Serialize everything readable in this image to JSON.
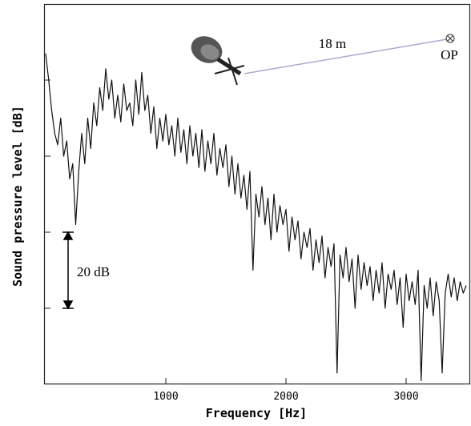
{
  "chart_data": {
    "type": "line",
    "xlabel": "Frequency [Hz]",
    "ylabel": "Sound pressure level [dB]",
    "annotations": [
      "18 m",
      "OP",
      "20 dB"
    ],
    "x": [
      0,
      25,
      50,
      75,
      100,
      125,
      150,
      175,
      200,
      225,
      250,
      275,
      300,
      325,
      350,
      375,
      400,
      425,
      450,
      475,
      500,
      525,
      550,
      575,
      600,
      625,
      650,
      675,
      700,
      725,
      750,
      775,
      800,
      825,
      850,
      875,
      900,
      925,
      950,
      975,
      1000,
      1025,
      1050,
      1075,
      1100,
      1125,
      1150,
      1175,
      1200,
      1225,
      1250,
      1275,
      1300,
      1325,
      1350,
      1375,
      1400,
      1425,
      1450,
      1475,
      1500,
      1525,
      1550,
      1575,
      1600,
      1625,
      1650,
      1675,
      1700,
      1725,
      1750,
      1775,
      1800,
      1825,
      1850,
      1875,
      1900,
      1925,
      1950,
      1975,
      2000,
      2025,
      2050,
      2075,
      2100,
      2125,
      2150,
      2175,
      2200,
      2225,
      2250,
      2275,
      2300,
      2325,
      2350,
      2375,
      2400,
      2425,
      2450,
      2475,
      2500,
      2525,
      2550,
      2575,
      2600,
      2625,
      2650,
      2675,
      2700,
      2725,
      2750,
      2775,
      2800,
      2825,
      2850,
      2875,
      2900,
      2925,
      2950,
      2975,
      3000,
      3025,
      3050,
      3075,
      3100,
      3125,
      3150,
      3175,
      3200,
      3225,
      3250,
      3275,
      3300,
      3325,
      3350,
      3375,
      3400,
      3425,
      3450,
      3475,
      3500
    ],
    "series": [
      {
        "color": "#111111",
        "values": [
          87,
          80,
          72,
          66,
          63,
          70,
          60,
          64,
          54,
          58,
          42,
          56,
          66,
          58,
          70,
          62,
          74,
          68,
          78,
          72,
          83,
          75,
          80,
          70,
          76,
          69,
          79,
          72,
          74,
          68,
          80,
          71,
          82,
          72,
          76,
          66,
          73,
          62,
          70,
          64,
          71,
          63,
          68,
          60,
          70,
          61,
          67,
          58,
          68,
          60,
          66,
          57,
          67,
          56,
          64,
          58,
          66,
          55,
          62,
          57,
          63,
          52,
          60,
          50,
          58,
          49,
          55,
          46,
          56,
          30,
          50,
          44,
          52,
          42,
          49,
          38,
          50,
          40,
          47,
          42,
          46,
          35,
          44,
          38,
          43,
          33,
          40,
          36,
          41,
          30,
          38,
          32,
          39,
          28,
          36,
          31,
          37,
          3,
          34,
          28,
          36,
          27,
          33,
          20,
          34,
          25,
          32,
          26,
          31,
          22,
          30,
          24,
          32,
          20,
          29,
          25,
          30,
          21,
          28,
          15,
          29,
          22,
          27,
          21,
          30,
          1,
          26,
          20,
          28,
          18,
          27,
          22,
          3,
          24,
          29,
          23,
          28,
          22,
          27,
          24,
          26
        ]
      }
    ],
    "xlim": [
      0,
      3500
    ],
    "xticks": [
      1000,
      2000,
      3000
    ],
    "ylim": [
      0,
      100
    ],
    "yticks": [
      20,
      40,
      60,
      80
    ]
  }
}
